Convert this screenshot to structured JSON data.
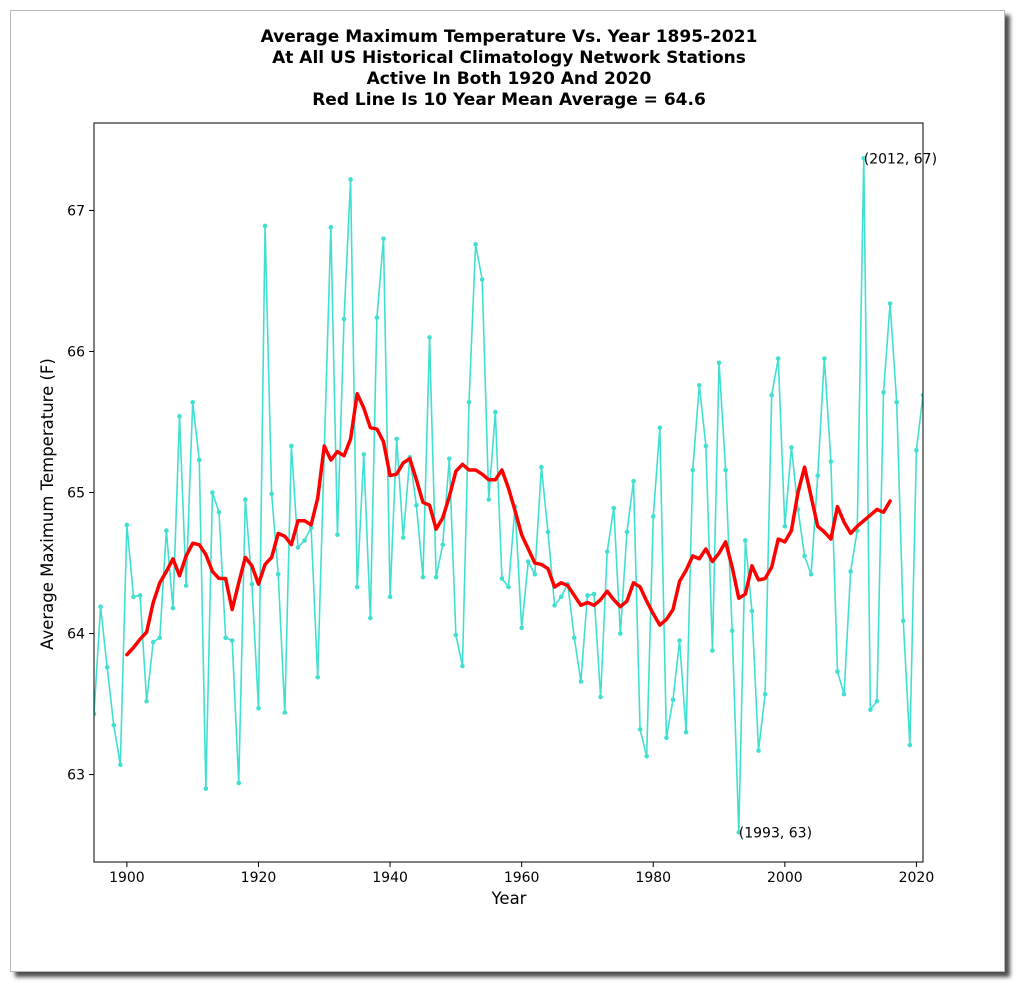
{
  "chart_data": {
    "type": "line",
    "title": [
      "Average Maximum Temperature Vs. Year 1895-2021",
      "At All US Historical Climatology Network Stations",
      "Active In Both 1920 And 2020",
      "Red Line Is 10 Year Mean  Average = 64.6"
    ],
    "xlabel": "Year",
    "ylabel": "Average Maximum Temperature (F)",
    "xlim": [
      1895,
      2021
    ],
    "ylim": [
      62.38,
      67.62
    ],
    "xticks": [
      1900,
      1920,
      1940,
      1960,
      1980,
      2000,
      2020
    ],
    "yticks": [
      63,
      64,
      65,
      66,
      67
    ],
    "grid": false,
    "colors": {
      "annual": "#40e0d0",
      "mean": "#ff0000"
    },
    "series": [
      {
        "style": "annual",
        "x": [
          1895,
          1896,
          1897,
          1898,
          1899,
          1900,
          1901,
          1902,
          1903,
          1904,
          1905,
          1906,
          1907,
          1908,
          1909,
          1910,
          1911,
          1912,
          1913,
          1914,
          1915,
          1916,
          1917,
          1918,
          1919,
          1920,
          1921,
          1922,
          1923,
          1924,
          1925,
          1926,
          1927,
          1928,
          1929,
          1930,
          1931,
          1932,
          1933,
          1934,
          1935,
          1936,
          1937,
          1938,
          1939,
          1940,
          1941,
          1942,
          1943,
          1944,
          1945,
          1946,
          1947,
          1948,
          1949,
          1950,
          1951,
          1952,
          1953,
          1954,
          1955,
          1956,
          1957,
          1958,
          1959,
          1960,
          1961,
          1962,
          1963,
          1964,
          1965,
          1966,
          1967,
          1968,
          1969,
          1970,
          1971,
          1972,
          1973,
          1974,
          1975,
          1976,
          1977,
          1978,
          1979,
          1980,
          1981,
          1982,
          1983,
          1984,
          1985,
          1986,
          1987,
          1988,
          1989,
          1990,
          1991,
          1992,
          1993,
          1994,
          1995,
          1996,
          1997,
          1998,
          1999,
          2000,
          2001,
          2002,
          2003,
          2004,
          2005,
          2006,
          2007,
          2008,
          2009,
          2010,
          2011,
          2012,
          2013,
          2014,
          2015,
          2016,
          2017,
          2018,
          2019,
          2020,
          2021
        ],
        "y": [
          63.43,
          64.19,
          63.76,
          63.35,
          63.07,
          64.77,
          64.26,
          64.27,
          63.52,
          63.94,
          63.97,
          64.73,
          64.18,
          65.54,
          64.34,
          65.64,
          65.23,
          62.9,
          65.0,
          64.86,
          63.97,
          63.95,
          62.94,
          64.95,
          64.35,
          63.47,
          66.89,
          64.99,
          64.42,
          63.44,
          65.33,
          64.61,
          64.66,
          64.75,
          63.69,
          65.3,
          66.88,
          64.7,
          66.23,
          67.22,
          64.33,
          65.27,
          64.11,
          66.24,
          66.8,
          64.26,
          65.38,
          64.68,
          65.25,
          64.91,
          64.4,
          66.1,
          64.4,
          64.63,
          65.24,
          63.99,
          63.77,
          65.64,
          66.76,
          66.51,
          64.95,
          65.57,
          64.39,
          64.33,
          64.9,
          64.04,
          64.51,
          64.42,
          65.18,
          64.72,
          64.2,
          64.26,
          64.35,
          63.97,
          63.66,
          64.27,
          64.28,
          63.55,
          64.58,
          64.89,
          64.0,
          64.72,
          65.08,
          63.32,
          63.13,
          64.83,
          65.46,
          63.26,
          63.53,
          63.95,
          63.3,
          65.16,
          65.76,
          65.33,
          63.88,
          65.92,
          65.16,
          64.02,
          62.59,
          64.66,
          64.16,
          63.17,
          63.57,
          65.69,
          65.95,
          64.76,
          65.32,
          64.88,
          64.55,
          64.42,
          65.12,
          65.95,
          65.22,
          63.73,
          63.57,
          64.44,
          64.73,
          67.37,
          63.46,
          63.52,
          65.71,
          66.34,
          65.64,
          64.09,
          63.21,
          65.3,
          65.69
        ]
      },
      {
        "style": "mean",
        "x": [
          1900,
          1901,
          1902,
          1903,
          1904,
          1905,
          1906,
          1907,
          1908,
          1909,
          1910,
          1911,
          1912,
          1913,
          1914,
          1915,
          1916,
          1917,
          1918,
          1919,
          1920,
          1921,
          1922,
          1923,
          1924,
          1925,
          1926,
          1927,
          1928,
          1929,
          1930,
          1931,
          1932,
          1933,
          1934,
          1935,
          1936,
          1937,
          1938,
          1939,
          1940,
          1941,
          1942,
          1943,
          1944,
          1945,
          1946,
          1947,
          1948,
          1949,
          1950,
          1951,
          1952,
          1953,
          1954,
          1955,
          1956,
          1957,
          1958,
          1959,
          1960,
          1961,
          1962,
          1963,
          1964,
          1965,
          1966,
          1967,
          1968,
          1969,
          1970,
          1971,
          1972,
          1973,
          1974,
          1975,
          1976,
          1977,
          1978,
          1979,
          1980,
          1981,
          1982,
          1983,
          1984,
          1985,
          1986,
          1987,
          1988,
          1989,
          1990,
          1991,
          1992,
          1993,
          1994,
          1995,
          1996,
          1997,
          1998,
          1999,
          2000,
          2001,
          2002,
          2003,
          2004,
          2005,
          2006,
          2007,
          2008,
          2009,
          2010,
          2011,
          2012,
          2013,
          2014,
          2015,
          2016
        ],
        "y": [
          63.85,
          63.9,
          63.96,
          64.01,
          64.22,
          64.36,
          64.44,
          64.53,
          64.41,
          64.55,
          64.64,
          64.63,
          64.56,
          64.44,
          64.39,
          64.39,
          64.17,
          64.36,
          64.54,
          64.48,
          64.35,
          64.49,
          64.54,
          64.71,
          64.69,
          64.63,
          64.8,
          64.8,
          64.77,
          64.96,
          65.33,
          65.23,
          65.29,
          65.26,
          65.38,
          65.7,
          65.6,
          65.46,
          65.45,
          65.36,
          65.12,
          65.13,
          65.21,
          65.24,
          65.09,
          64.93,
          64.91,
          64.74,
          64.82,
          64.97,
          65.15,
          65.2,
          65.16,
          65.16,
          65.13,
          65.09,
          65.09,
          65.16,
          65.03,
          64.87,
          64.7,
          64.6,
          64.5,
          64.49,
          64.46,
          64.33,
          64.36,
          64.34,
          64.27,
          64.2,
          64.22,
          64.2,
          64.24,
          64.3,
          64.24,
          64.19,
          64.23,
          64.36,
          64.33,
          64.23,
          64.14,
          64.06,
          64.1,
          64.17,
          64.37,
          64.45,
          64.55,
          64.53,
          64.6,
          64.51,
          64.57,
          64.65,
          64.47,
          64.25,
          64.28,
          64.48,
          64.38,
          64.39,
          64.47,
          64.67,
          64.65,
          64.73,
          65.0,
          65.18,
          64.97,
          64.76,
          64.72,
          64.67,
          64.9,
          64.79,
          64.71,
          64.76,
          64.8,
          64.84,
          64.88,
          64.86,
          64.94
        ]
      }
    ],
    "annotations": [
      {
        "text": "(2012, 67)",
        "x": 2012,
        "y": 67.37
      },
      {
        "text": "(1993, 63)",
        "x": 1993,
        "y": 62.59
      }
    ]
  }
}
